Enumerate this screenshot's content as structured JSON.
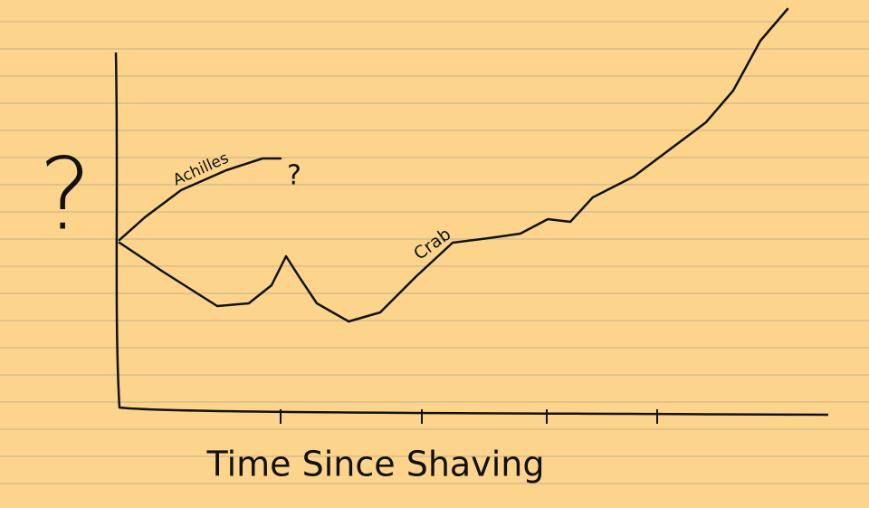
{
  "chart_data": {
    "type": "line",
    "x_label": "Time Since Shaving",
    "y_label": "?",
    "annotations": [
      "?"
    ],
    "xlim": [
      0,
      98
    ],
    "ylim": [
      0,
      112.5
    ],
    "xticks": [
      {
        "value": 22.5,
        "label": null
      },
      {
        "value": 42,
        "label": null
      },
      {
        "value": 59.25,
        "label": null
      },
      {
        "value": 74.5,
        "label": null
      }
    ],
    "series": [
      {
        "name": "Achilles",
        "color": "#111111",
        "x": [
          0.25,
          3.75,
          8.75,
          15,
          20,
          22.5
        ],
        "values": [
          47.5,
          53.75,
          61.25,
          66.75,
          70,
          70
        ]
      },
      {
        "name": "Crab",
        "color": "#111111",
        "x": [
          0.25,
          6.25,
          13.75,
          18.1,
          21.25,
          23.25,
          25,
          27.5,
          31.9,
          36.25,
          41.25,
          46.25,
          51.25,
          55.6,
          59.4,
          62.5,
          65.6,
          71.25,
          76.25,
          81.25,
          85,
          88.75,
          92.5
        ],
        "values": [
          46.75,
          38.75,
          29.25,
          30,
          35,
          43,
          37.5,
          30,
          25,
          27.5,
          37.5,
          46.75,
          48,
          49.25,
          53.25,
          52.5,
          59.25,
          65,
          72.5,
          80,
          88.75,
          102.5,
          111.25
        ]
      }
    ]
  }
}
